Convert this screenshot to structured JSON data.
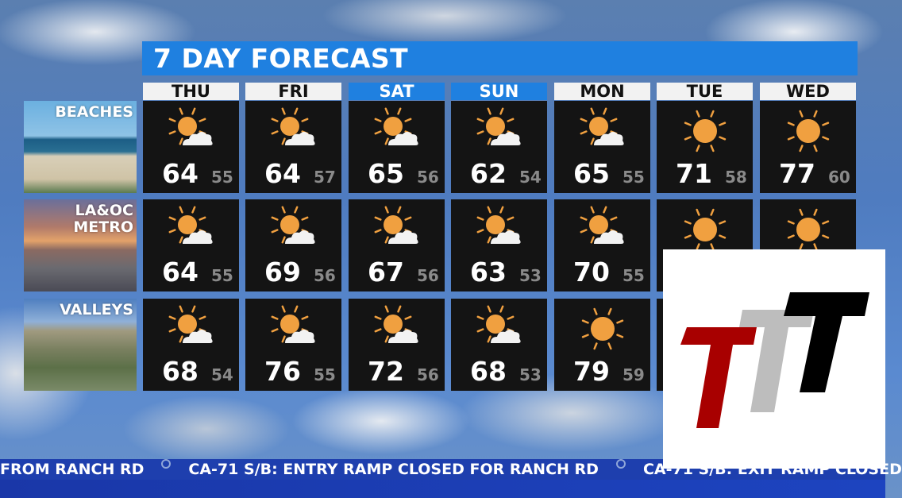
{
  "title": "7 DAY FORECAST",
  "colors": {
    "accent": "#1f80e0",
    "sun": "#f0a040",
    "ticker": "#1e3fae",
    "logo_red": "#a80000",
    "logo_gray": "#bdbdbd",
    "logo_black": "#000000"
  },
  "regions": [
    "BEACHES",
    "LA&OC\nMETRO",
    "VALLEYS"
  ],
  "days": [
    {
      "label": "THU",
      "highlight": false
    },
    {
      "label": "FRI",
      "highlight": false
    },
    {
      "label": "SAT",
      "highlight": true
    },
    {
      "label": "SUN",
      "highlight": true
    },
    {
      "label": "MON",
      "highlight": false
    },
    {
      "label": "TUE",
      "highlight": false
    },
    {
      "label": "WED",
      "highlight": false
    }
  ],
  "forecast": [
    [
      {
        "icon": "partly-sunny",
        "hi": "64",
        "lo": "55"
      },
      {
        "icon": "partly-sunny",
        "hi": "64",
        "lo": "57"
      },
      {
        "icon": "partly-sunny",
        "hi": "65",
        "lo": "56"
      },
      {
        "icon": "partly-sunny",
        "hi": "62",
        "lo": "54"
      },
      {
        "icon": "partly-sunny",
        "hi": "65",
        "lo": "55"
      },
      {
        "icon": "sunny",
        "hi": "71",
        "lo": "58"
      },
      {
        "icon": "sunny",
        "hi": "77",
        "lo": "60"
      }
    ],
    [
      {
        "icon": "partly-sunny",
        "hi": "64",
        "lo": "55"
      },
      {
        "icon": "partly-sunny",
        "hi": "69",
        "lo": "56"
      },
      {
        "icon": "partly-sunny",
        "hi": "67",
        "lo": "56"
      },
      {
        "icon": "partly-sunny",
        "hi": "63",
        "lo": "53"
      },
      {
        "icon": "partly-sunny",
        "hi": "70",
        "lo": "55"
      },
      {
        "icon": "sunny"
      },
      {
        "icon": "sunny"
      }
    ],
    [
      {
        "icon": "partly-sunny",
        "hi": "68",
        "lo": "54"
      },
      {
        "icon": "partly-sunny",
        "hi": "76",
        "lo": "55"
      },
      {
        "icon": "partly-sunny",
        "hi": "72",
        "lo": "56"
      },
      {
        "icon": "partly-sunny",
        "hi": "68",
        "lo": "53"
      },
      {
        "icon": "sunny",
        "hi": "79",
        "lo": "59"
      },
      {},
      {}
    ]
  ],
  "ticker": {
    "items": [
      "FROM RANCH RD",
      "CA-71 S/B: ENTRY RAMP CLOSED FOR RANCH RD",
      "CA-71 S/B: EXIT RAMP CLOSED"
    ]
  },
  "logo": {
    "text": "TTT"
  }
}
